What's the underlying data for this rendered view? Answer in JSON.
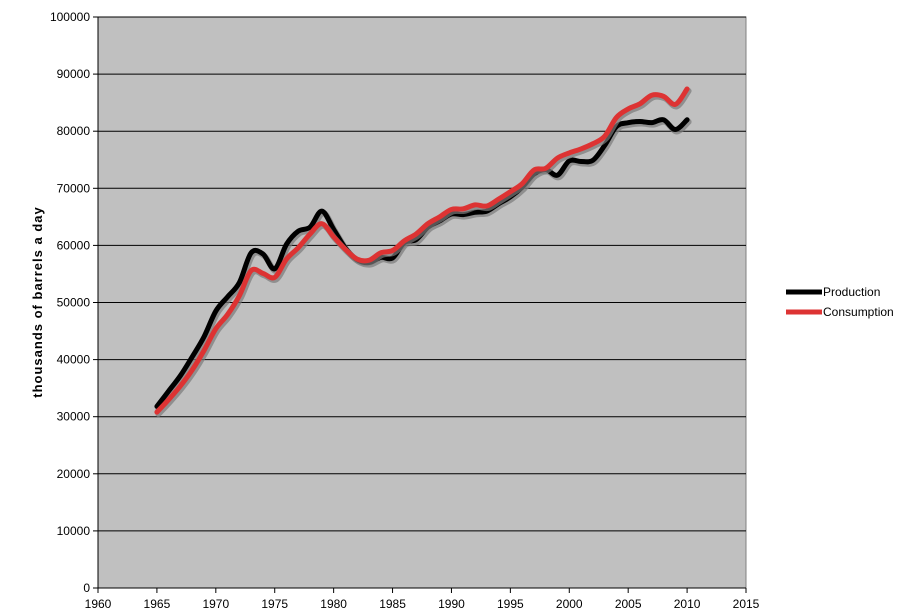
{
  "chart_data": {
    "type": "line",
    "title": "",
    "xlabel": "",
    "ylabel": "thousands of barrels a day",
    "xlim": [
      1960,
      2015
    ],
    "ylim": [
      0,
      100000
    ],
    "x_ticks": [
      1960,
      1965,
      1970,
      1975,
      1980,
      1985,
      1990,
      1995,
      2000,
      2005,
      2010,
      2015
    ],
    "y_ticks": [
      0,
      10000,
      20000,
      30000,
      40000,
      50000,
      60000,
      70000,
      80000,
      90000,
      100000
    ],
    "x_tick_labels": [
      "1960",
      "1965",
      "1970",
      "1975",
      "1980",
      "1985",
      "1990",
      "1995",
      "2000",
      "2005",
      "2010",
      "2015"
    ],
    "y_tick_labels": [
      "0",
      "10000",
      "20000",
      "30000",
      "40000",
      "50000",
      "60000",
      "70000",
      "80000",
      "90000",
      "100000"
    ],
    "grid": "horizontal",
    "legend_position": "right",
    "x": [
      1965,
      1966,
      1967,
      1968,
      1969,
      1970,
      1971,
      1972,
      1973,
      1974,
      1975,
      1976,
      1977,
      1978,
      1979,
      1980,
      1981,
      1982,
      1983,
      1984,
      1985,
      1986,
      1987,
      1988,
      1989,
      1990,
      1991,
      1992,
      1993,
      1994,
      1995,
      1996,
      1997,
      1998,
      1999,
      2000,
      2001,
      2002,
      2003,
      2004,
      2005,
      2006,
      2007,
      2008,
      2009,
      2010
    ],
    "series": [
      {
        "name": "Production",
        "color": "#000000",
        "values": [
          31800,
          34500,
          37200,
          40500,
          44000,
          48500,
          51000,
          53500,
          58700,
          58500,
          55900,
          60200,
          62500,
          63200,
          66000,
          62800,
          59500,
          57500,
          57000,
          57900,
          57800,
          60500,
          61000,
          63200,
          64300,
          65500,
          65400,
          65800,
          66000,
          67300,
          68500,
          70200,
          72500,
          73300,
          72300,
          74800,
          74700,
          74900,
          77500,
          80800,
          81500,
          81700,
          81500,
          82000,
          80300,
          82000
        ]
      },
      {
        "name": "Consumption",
        "color": "#dd3333",
        "values": [
          30800,
          33000,
          35400,
          38200,
          41600,
          45400,
          47900,
          51200,
          55600,
          55100,
          54400,
          57600,
          59600,
          62000,
          63800,
          61500,
          59300,
          57600,
          57400,
          58700,
          59100,
          60800,
          62000,
          63800,
          65000,
          66300,
          66400,
          67100,
          66900,
          68100,
          69400,
          70800,
          73200,
          73500,
          75300,
          76200,
          76900,
          77800,
          79100,
          82400,
          83900,
          84800,
          86300,
          86100,
          84700,
          87400
        ]
      }
    ]
  }
}
